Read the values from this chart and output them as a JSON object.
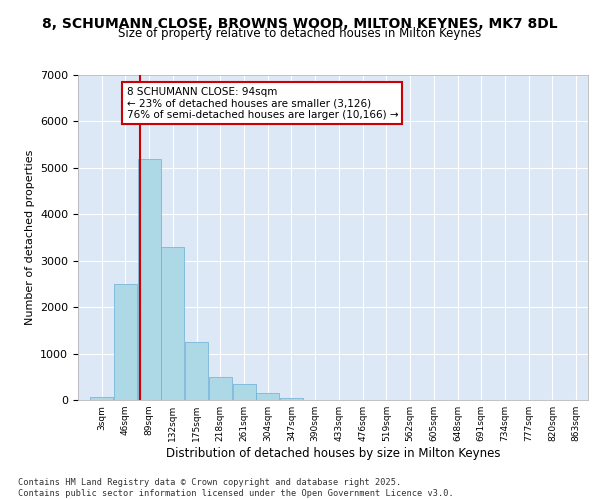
{
  "title_line1": "8, SCHUMANN CLOSE, BROWNS WOOD, MILTON KEYNES, MK7 8DL",
  "title_line2": "Size of property relative to detached houses in Milton Keynes",
  "xlabel": "Distribution of detached houses by size in Milton Keynes",
  "ylabel": "Number of detached properties",
  "bins": [
    "3sqm",
    "46sqm",
    "89sqm",
    "132sqm",
    "175sqm",
    "218sqm",
    "261sqm",
    "304sqm",
    "347sqm",
    "390sqm",
    "433sqm",
    "476sqm",
    "519sqm",
    "562sqm",
    "605sqm",
    "648sqm",
    "691sqm",
    "734sqm",
    "777sqm",
    "820sqm",
    "863sqm"
  ],
  "bin_edges": [
    3,
    46,
    89,
    132,
    175,
    218,
    261,
    304,
    347,
    390,
    433,
    476,
    519,
    562,
    605,
    648,
    691,
    734,
    777,
    820,
    863
  ],
  "bar_values": [
    60,
    2500,
    5200,
    3300,
    1250,
    500,
    350,
    150,
    50,
    10,
    5,
    3,
    2,
    1,
    1,
    0,
    0,
    0,
    0,
    0,
    0
  ],
  "bar_color": "#add8e6",
  "bar_edge_color": "#6baed6",
  "vline_x": 94,
  "vline_color": "#cc0000",
  "annotation_title": "8 SCHUMANN CLOSE: 94sqm",
  "annotation_line2": "← 23% of detached houses are smaller (3,126)",
  "annotation_line3": "76% of semi-detached houses are larger (10,166) →",
  "annotation_box_color": "#cc0000",
  "ylim": [
    0,
    7000
  ],
  "yticks": [
    0,
    1000,
    2000,
    3000,
    4000,
    5000,
    6000,
    7000
  ],
  "bg_color": "#dce8f5",
  "footer_line1": "Contains HM Land Registry data © Crown copyright and database right 2025.",
  "footer_line2": "Contains public sector information licensed under the Open Government Licence v3.0."
}
